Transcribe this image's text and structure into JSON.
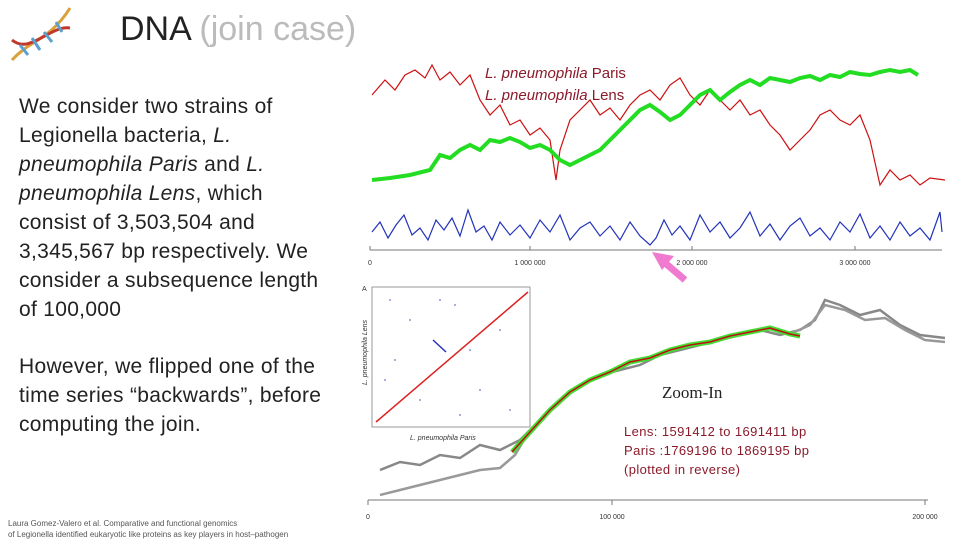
{
  "header": {
    "title": "DNA",
    "subtitle": "(join case)"
  },
  "body": {
    "paragraph1": [
      "We consider two strains of Legionella bacteria, ",
      "L. pneumophila Paris",
      " and ",
      "L. pneumophila Lens",
      ", which consist of 3,503,504 and 3,345,567 bp respectively. We consider a subsequence length of 100,000"
    ],
    "paragraph2": "However, we flipped one of the time series “backwards”, before computing the join."
  },
  "legend": [
    {
      "species": "L. pneumophila",
      "strain": "Paris"
    },
    {
      "species": "L. pneumophila",
      "strain": "Lens"
    }
  ],
  "top_axis": {
    "ticks": [
      "0",
      "1 000 000",
      "2 000 000",
      "3 000 000"
    ]
  },
  "dotplot": {
    "panel": "A",
    "y_label": "L. pneumophila Lens",
    "x_label": "L. pneumophila Paris"
  },
  "zoom": {
    "label": "Zoom-In",
    "info": [
      "Lens: 1591412 to 1691411 bp",
      "Paris :1769196 to 1869195 bp",
      "(plotted in reverse)"
    ]
  },
  "bottom_axis": {
    "ticks": [
      "0",
      "100 000",
      "200 000"
    ]
  },
  "citation": {
    "lines": [
      "Laura Gomez-Valero et al. Comparative and functional genomics",
      "of Legionella identified eukaryotic like proteins as key players in host–pathogen"
    ]
  }
}
